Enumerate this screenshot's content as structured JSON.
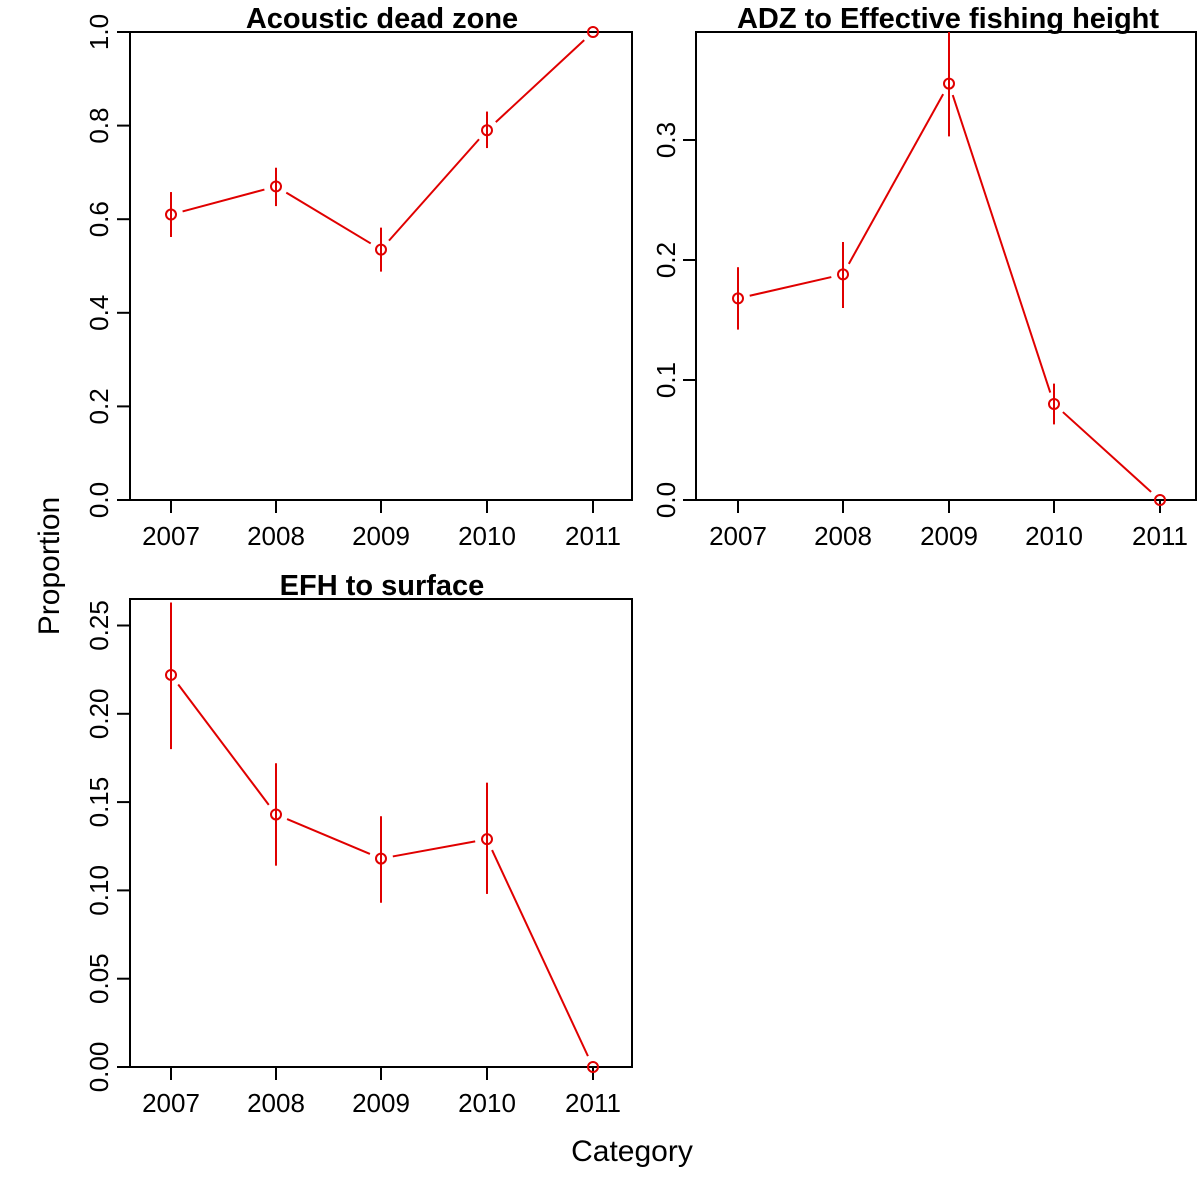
{
  "figure": {
    "xlabel": "Category",
    "ylabel": "Proportion"
  },
  "chart_data": [
    {
      "type": "line",
      "title": "Acoustic dead zone",
      "categories": [
        "2007",
        "2008",
        "2009",
        "2010",
        "2011"
      ],
      "values": [
        0.61,
        0.67,
        0.535,
        0.79,
        1.0
      ],
      "error_low": [
        0.562,
        0.628,
        0.488,
        0.752,
        1.0
      ],
      "error_high": [
        0.658,
        0.71,
        0.582,
        0.83,
        1.0
      ],
      "ylim": [
        0,
        1.0
      ],
      "yticks": [
        "0.0",
        "0.2",
        "0.4",
        "0.6",
        "0.8",
        "1.0"
      ],
      "ytick_values": [
        0,
        0.2,
        0.4,
        0.6,
        0.8,
        1.0
      ],
      "color": "#e00000",
      "marker": "open-circle",
      "grid": false
    },
    {
      "type": "line",
      "title": "ADZ to Effective fishing height",
      "categories": [
        "2007",
        "2008",
        "2009",
        "2010",
        "2011"
      ],
      "values": [
        0.168,
        0.188,
        0.347,
        0.08,
        0.0
      ],
      "error_low": [
        0.142,
        0.16,
        0.303,
        0.063,
        0.0
      ],
      "error_high": [
        0.194,
        0.215,
        0.39,
        0.097,
        0.0
      ],
      "ylim": [
        0,
        0.39
      ],
      "yticks": [
        "0.0",
        "0.1",
        "0.2",
        "0.3"
      ],
      "ytick_values": [
        0,
        0.1,
        0.2,
        0.3
      ],
      "color": "#e00000",
      "marker": "open-circle",
      "grid": false
    },
    {
      "type": "line",
      "title": "EFH to surface",
      "categories": [
        "2007",
        "2008",
        "2009",
        "2010",
        "2011"
      ],
      "values": [
        0.222,
        0.143,
        0.118,
        0.129,
        0.0
      ],
      "error_low": [
        0.18,
        0.114,
        0.093,
        0.098,
        0.0
      ],
      "error_high": [
        0.263,
        0.172,
        0.142,
        0.161,
        0.0
      ],
      "ylim": [
        0,
        0.265
      ],
      "yticks": [
        "0.00",
        "0.05",
        "0.10",
        "0.15",
        "0.20",
        "0.25"
      ],
      "ytick_values": [
        0,
        0.05,
        0.1,
        0.15,
        0.2,
        0.25
      ],
      "color": "#e00000",
      "marker": "open-circle",
      "grid": false
    }
  ]
}
